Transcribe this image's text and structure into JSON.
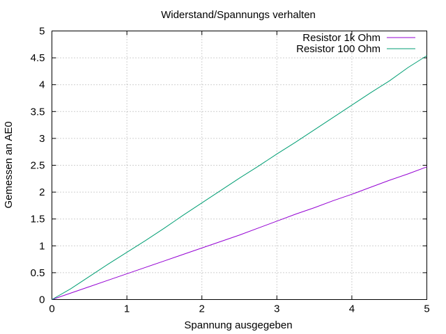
{
  "chart_data": {
    "type": "line",
    "title": "Widerstand/Spannungs verhalten",
    "xlabel": "Spannung ausgegeben",
    "ylabel": "Gemessen an AE0",
    "xlim": [
      0,
      5
    ],
    "ylim": [
      0,
      5
    ],
    "xticks": [
      "0",
      "1",
      "2",
      "3",
      "4",
      "5"
    ],
    "yticks": [
      "0",
      "0.5",
      "1",
      "1.5",
      "2",
      "2.5",
      "3",
      "3.5",
      "4",
      "4.5",
      "5"
    ],
    "grid": true,
    "legend_position": "top-right",
    "series": [
      {
        "name": "Resistor 1k Ohm",
        "color": "#9400d3",
        "x": [
          0,
          0.25,
          0.5,
          0.75,
          1.0,
          1.25,
          1.5,
          1.75,
          2.0,
          2.25,
          2.5,
          2.75,
          3.0,
          3.25,
          3.5,
          3.75,
          4.0,
          4.25,
          4.5,
          4.75,
          5.0
        ],
        "y": [
          0,
          0.12,
          0.24,
          0.36,
          0.48,
          0.6,
          0.72,
          0.84,
          0.96,
          1.08,
          1.2,
          1.33,
          1.46,
          1.59,
          1.71,
          1.84,
          1.96,
          2.09,
          2.22,
          2.34,
          2.47
        ]
      },
      {
        "name": "Resistor 100 Ohm",
        "color": "#009e73",
        "x": [
          0,
          0.25,
          0.5,
          0.75,
          1.0,
          1.25,
          1.5,
          1.75,
          2.0,
          2.25,
          2.5,
          2.75,
          3.0,
          3.25,
          3.5,
          3.75,
          4.0,
          4.25,
          4.5,
          4.75,
          5.0
        ],
        "y": [
          0,
          0.2,
          0.43,
          0.66,
          0.88,
          1.1,
          1.33,
          1.57,
          1.8,
          2.03,
          2.26,
          2.48,
          2.71,
          2.93,
          3.16,
          3.39,
          3.62,
          3.85,
          4.07,
          4.32,
          4.54
        ]
      }
    ]
  }
}
